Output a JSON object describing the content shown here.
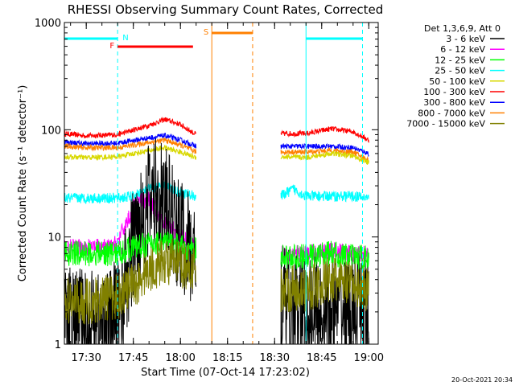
{
  "chart_data": {
    "type": "line",
    "title": "RHESSI Observing Summary Count Rates, Corrected",
    "xlabel": "Start Time (07-Oct-14 17:23:02)",
    "ylabel": "Corrected Count Rate (s⁻¹ detector⁻¹)",
    "y_scale": "log",
    "ylim": [
      1,
      1000
    ],
    "xlim": [
      "17:23:02",
      "19:03:00"
    ],
    "x_ticks": [
      "17:30",
      "17:45",
      "18:00",
      "18:15",
      "18:30",
      "18:45",
      "19:00"
    ],
    "y_ticks": [
      "1",
      "10",
      "100",
      "1000"
    ],
    "legend": {
      "position": "top-right",
      "header": "Det 1,3,6,9, Att 0",
      "entries": [
        {
          "label": "3 - 6 keV",
          "color": "#000000"
        },
        {
          "label": "6 - 12 keV",
          "color": "#ff00ff"
        },
        {
          "label": "12 - 25 keV",
          "color": "#00ff00"
        },
        {
          "label": "25 - 50 keV",
          "color": "#00ffff"
        },
        {
          "label": "50 - 100 keV",
          "color": "#d8d800"
        },
        {
          "label": "100 - 300 keV",
          "color": "#ff0000"
        },
        {
          "label": "300 - 800 keV",
          "color": "#0000ff"
        },
        {
          "label": "800 - 7000 keV",
          "color": "#ff8000"
        },
        {
          "label": "7000 - 15000 keV",
          "color": "#808000"
        }
      ]
    },
    "series": [
      {
        "name": "100 - 300 keV",
        "color": "#ff0000",
        "x": [
          "17:23",
          "17:30",
          "17:40",
          "17:50",
          "17:55",
          "18:00",
          "18:05",
          "18:32",
          "18:40",
          "18:48",
          "18:55",
          "19:00"
        ],
        "y": [
          92,
          88,
          90,
          110,
          125,
          112,
          90,
          92,
          92,
          102,
          96,
          80
        ]
      },
      {
        "name": "300 - 800 keV",
        "color": "#0000ff",
        "x": [
          "17:23",
          "17:30",
          "17:40",
          "17:50",
          "17:55",
          "18:00",
          "18:05",
          "18:32",
          "18:40",
          "18:48",
          "18:55",
          "19:00"
        ],
        "y": [
          77,
          74,
          75,
          84,
          88,
          80,
          70,
          70,
          70,
          70,
          68,
          60
        ]
      },
      {
        "name": "800 - 7000 keV",
        "color": "#ff8000",
        "x": [
          "17:23",
          "17:30",
          "17:40",
          "17:50",
          "17:55",
          "18:00",
          "18:05",
          "18:32",
          "18:40",
          "18:48",
          "18:55",
          "19:00"
        ],
        "y": [
          70,
          68,
          68,
          76,
          80,
          72,
          62,
          62,
          62,
          64,
          62,
          52
        ]
      },
      {
        "name": "50 - 100 keV",
        "color": "#d8d800",
        "x": [
          "17:23",
          "17:30",
          "17:40",
          "17:50",
          "17:55",
          "18:00",
          "18:05",
          "18:32",
          "18:40",
          "18:48",
          "18:55",
          "19:00"
        ],
        "y": [
          56,
          55,
          56,
          64,
          68,
          62,
          55,
          56,
          55,
          60,
          57,
          49
        ]
      },
      {
        "name": "25 - 50 keV",
        "color": "#00ffff",
        "x": [
          "17:23",
          "17:30",
          "17:40",
          "17:45",
          "17:50",
          "17:55",
          "18:00",
          "18:05",
          "18:32",
          "18:36",
          "18:40",
          "18:48",
          "18:55",
          "19:00"
        ],
        "y": [
          23,
          23,
          23,
          24,
          28,
          30,
          26,
          24,
          24,
          28,
          24,
          24,
          24,
          23
        ]
      },
      {
        "name": "6 - 12 keV",
        "color": "#ff00ff",
        "x": [
          "17:23",
          "17:30",
          "17:38",
          "17:40",
          "17:43",
          "17:46",
          "17:50",
          "17:55",
          "18:00",
          "18:05",
          "18:32",
          "18:40",
          "18:48",
          "18:55",
          "19:00"
        ],
        "y": [
          8,
          8,
          8,
          9,
          14,
          21,
          22,
          14,
          10,
          8.5,
          7,
          7,
          7.5,
          7,
          7
        ]
      },
      {
        "name": "3 - 6 keV",
        "color": "#000000",
        "x": [
          "17:23",
          "17:30",
          "17:38",
          "17:42",
          "17:46",
          "17:50",
          "17:53",
          "17:56",
          "18:00",
          "18:05",
          "18:32",
          "18:40",
          "18:48",
          "18:55",
          "19:00"
        ],
        "y": [
          1.5,
          1.5,
          1.5,
          3,
          12,
          22,
          26,
          18,
          10,
          6,
          2.3,
          2,
          2,
          2,
          2
        ]
      },
      {
        "name": "12 - 25 keV",
        "color": "#00ff00",
        "x": [
          "17:23",
          "17:30",
          "17:40",
          "17:45",
          "17:50",
          "17:55",
          "18:00",
          "18:05",
          "18:32",
          "18:40",
          "18:48",
          "18:55",
          "19:00"
        ],
        "y": [
          7,
          7,
          7,
          8,
          8.5,
          9,
          8,
          7.5,
          6.5,
          6.5,
          7,
          6.5,
          6.5
        ]
      },
      {
        "name": "7000 - 15000 keV",
        "color": "#808000",
        "x": [
          "17:23",
          "17:30",
          "17:40",
          "17:45",
          "17:50",
          "17:55",
          "18:00",
          "18:05",
          "18:32",
          "18:40",
          "18:48",
          "18:55",
          "19:00"
        ],
        "y": [
          2.5,
          2.5,
          2.8,
          3.5,
          5,
          6,
          5.5,
          5,
          3.3,
          3.3,
          4,
          3.5,
          3.3
        ]
      }
    ],
    "flag_bars": [
      {
        "label": "N",
        "color": "#00ffff",
        "x": [
          "17:23",
          "17:40"
        ]
      },
      {
        "label": "",
        "color": "#00ffff",
        "x": [
          "18:40",
          "18:58"
        ]
      },
      {
        "label": "F",
        "color": "#ff0000",
        "x": [
          "17:40",
          "18:04"
        ]
      },
      {
        "label": "S",
        "color": "#ff8000",
        "x": [
          "18:10",
          "18:23"
        ]
      }
    ],
    "markers": [
      {
        "time": "17:40",
        "color": "#00ffff",
        "style": "dashed"
      },
      {
        "time": "18:40",
        "color": "#00ffff",
        "style": "solid"
      },
      {
        "time": "18:58",
        "color": "#00ffff",
        "style": "dashed"
      },
      {
        "time": "18:10",
        "color": "#ff8000",
        "style": "solid"
      },
      {
        "time": "18:23",
        "color": "#ff8000",
        "style": "dashed"
      }
    ],
    "data_gap": [
      "18:05",
      "18:32"
    ]
  },
  "footer": {
    "timestamp": "20-Oct-2021 20:34"
  }
}
